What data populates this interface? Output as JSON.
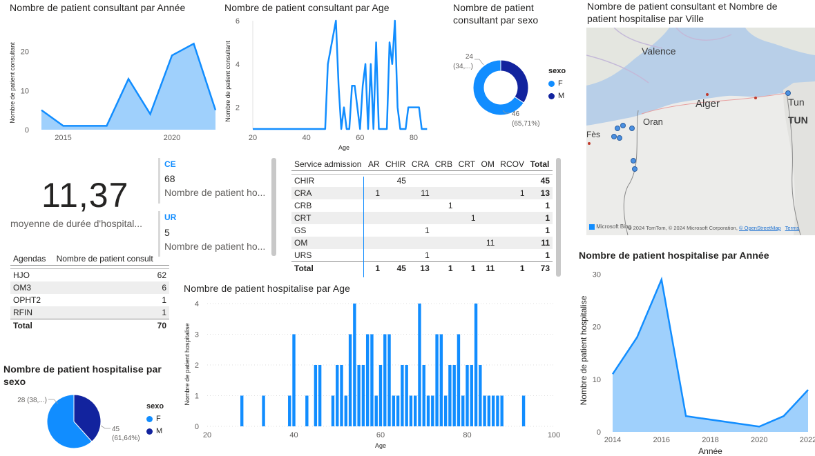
{
  "colors": {
    "primary": "#118dff",
    "dark": "#12239e",
    "area": "#9fd0fc",
    "map_water": "#b8cfe8",
    "map_land": "#ececea"
  },
  "charts": {
    "consult_annee": {
      "title": "Nombre de patient consultant par Année",
      "ylabel": "Nombre de patient consultant",
      "yticks": [
        "0",
        "10",
        "20"
      ],
      "xticks": [
        "2015",
        "2020"
      ]
    },
    "consult_age": {
      "title": "Nombre de patient consultant par Age",
      "ylabel": "Nombre de patient consultant",
      "xlabel": "Age",
      "yticks": [
        "2",
        "4",
        "6"
      ],
      "xticks": [
        "20",
        "40",
        "60",
        "80"
      ]
    },
    "consult_sexo": {
      "title": "Nombre de patient consultant par sexo",
      "legend_title": "sexo",
      "legend": [
        "F",
        "M"
      ],
      "labels": {
        "m_value": "24",
        "m_pct": "(34,...)",
        "f_value": "46",
        "f_pct": "(65,71%)"
      }
    },
    "map": {
      "title": "Nombre de patient consultant et Nombre de patient hospitalise par Ville",
      "cities": [
        "Valence",
        "Alger",
        "Oran",
        "Tun",
        "TUN",
        "Fès"
      ],
      "attribution": "© 2024 TomTom, © 2024 Microsoft Corporation,",
      "osm": "© OpenStreetMap",
      "terms": "Terms",
      "brand": "Microsoft Bing"
    },
    "kpi": {
      "value": "11,37",
      "label": "moyenne de durée d'hospital..."
    },
    "cards": [
      {
        "category": "CE",
        "value": "68",
        "label": "Nombre de patient ho..."
      },
      {
        "category": "UR",
        "value": "5",
        "label": "Nombre de patient ho..."
      }
    ],
    "agendas": {
      "headers": [
        "Agendas",
        "Nombre de patient consult"
      ],
      "rows": [
        [
          "HJO",
          "62"
        ],
        [
          "OM3",
          "6"
        ],
        [
          "OPHT2",
          "1"
        ],
        [
          "RFIN",
          "1"
        ]
      ],
      "total": [
        "Total",
        "70"
      ]
    },
    "matrix": {
      "headers": [
        "Service admission",
        "AR",
        "CHIR",
        "CRA",
        "CRB",
        "CRT",
        "OM",
        "RCOV",
        "Total"
      ],
      "rows": [
        [
          "CHIR",
          "",
          "45",
          "",
          "",
          "",
          "",
          "",
          "45"
        ],
        [
          "CRA",
          "1",
          "",
          "11",
          "",
          "",
          "",
          "1",
          "13"
        ],
        [
          "CRB",
          "",
          "",
          "",
          "1",
          "",
          "",
          "",
          "1"
        ],
        [
          "CRT",
          "",
          "",
          "",
          "",
          "1",
          "",
          "",
          "1"
        ],
        [
          "GS",
          "",
          "",
          "1",
          "",
          "",
          "",
          "",
          "1"
        ],
        [
          "OM",
          "",
          "",
          "",
          "",
          "",
          "11",
          "",
          "11"
        ],
        [
          "URS",
          "",
          "",
          "1",
          "",
          "",
          "",
          "",
          "1"
        ]
      ],
      "total": [
        "Total",
        "1",
        "45",
        "13",
        "1",
        "1",
        "11",
        "1",
        "73"
      ]
    },
    "hosp_age": {
      "title": "Nombre de patient hospitalise par Age",
      "ylabel": "Nombre de patient hospitalise",
      "xlabel": "Age",
      "yticks": [
        "0",
        "1",
        "2",
        "3",
        "4"
      ],
      "xticks": [
        "20",
        "40",
        "60",
        "80",
        "100"
      ]
    },
    "hosp_sexo": {
      "title": "Nombre de patient hospitalise par sexo",
      "legend_title": "sexo",
      "legend": [
        "F",
        "M"
      ],
      "labels": {
        "m_value": "28",
        "m_pct": "(38,...)",
        "f_value": "45",
        "f_pct": "(61,64%)"
      }
    },
    "hosp_annee": {
      "title": "Nombre de patient hospitalise par Année",
      "ylabel": "Nombre de patient hospitalise",
      "xlabel": "Année",
      "yticks": [
        "0",
        "10",
        "20",
        "30"
      ],
      "xticks": [
        "2014",
        "2016",
        "2018",
        "2020",
        "2022"
      ]
    }
  },
  "chart_data": [
    {
      "type": "area",
      "title": "Nombre de patient consultant par Année",
      "ylabel": "Nombre de patient consultant",
      "x": [
        2014,
        2015,
        2016,
        2017,
        2018,
        2019,
        2020,
        2021,
        2022
      ],
      "values": [
        5,
        1,
        1,
        1,
        13,
        4,
        19,
        22,
        5
      ],
      "ylim": [
        0,
        24
      ],
      "xlim": [
        2014,
        2022
      ]
    },
    {
      "type": "line",
      "title": "Nombre de patient consultant par Age",
      "xlabel": "Age",
      "ylabel": "Nombre de patient consultant",
      "x": [
        20,
        47,
        48,
        51,
        52,
        53,
        54,
        55,
        56,
        57,
        58,
        59,
        60,
        61,
        62,
        63,
        64,
        65,
        66,
        67,
        68,
        69,
        70,
        71,
        72,
        73,
        74,
        75,
        76,
        77,
        78,
        79,
        80,
        81,
        82,
        83,
        84,
        85
      ],
      "values": [
        1,
        1,
        4,
        6,
        3,
        1,
        2,
        1,
        1,
        3,
        3,
        2,
        1,
        3,
        4,
        1,
        4,
        1,
        5,
        1,
        1,
        1,
        1,
        5,
        4,
        6,
        2,
        1,
        1,
        1,
        2,
        2,
        2,
        2,
        2,
        1,
        1,
        1
      ],
      "ylim": [
        1,
        6
      ],
      "xlim": [
        20,
        88
      ]
    },
    {
      "type": "pie",
      "title": "Nombre de patient consultant par sexo",
      "donut": true,
      "categories": [
        "F",
        "M"
      ],
      "values": [
        46,
        24
      ]
    },
    {
      "type": "table",
      "title": "Agendas",
      "categories": [
        "HJO",
        "OM3",
        "OPHT2",
        "RFIN"
      ],
      "values": [
        62,
        6,
        1,
        1
      ],
      "total": 70
    },
    {
      "type": "table",
      "title": "Service admission",
      "columns": [
        "AR",
        "CHIR",
        "CRA",
        "CRB",
        "CRT",
        "OM",
        "RCOV"
      ],
      "rows": [
        "CHIR",
        "CRA",
        "CRB",
        "CRT",
        "GS",
        "OM",
        "URS"
      ],
      "total": 73
    },
    {
      "type": "bar",
      "title": "Nombre de patient hospitalise par Age",
      "xlabel": "Age",
      "ylabel": "Nombre de patient hospitalise",
      "x": [
        28,
        33,
        39,
        40,
        43,
        45,
        46,
        49,
        50,
        51,
        52,
        53,
        54,
        55,
        56,
        57,
        58,
        59,
        60,
        61,
        62,
        63,
        64,
        65,
        66,
        67,
        68,
        69,
        70,
        71,
        72,
        73,
        74,
        75,
        76,
        77,
        78,
        79,
        80,
        81,
        82,
        83,
        84,
        85,
        86,
        87,
        88,
        93
      ],
      "values": [
        1,
        1,
        1,
        3,
        1,
        2,
        2,
        1,
        2,
        2,
        1,
        3,
        4,
        2,
        2,
        3,
        3,
        1,
        2,
        3,
        3,
        1,
        1,
        2,
        2,
        1,
        1,
        4,
        2,
        1,
        1,
        3,
        3,
        1,
        2,
        2,
        3,
        1,
        2,
        2,
        4,
        2,
        1,
        1,
        1,
        1,
        1,
        1
      ],
      "ylim": [
        0,
        4
      ],
      "xlim": [
        20,
        100
      ]
    },
    {
      "type": "pie",
      "title": "Nombre de patient hospitalise par sexo",
      "categories": [
        "F",
        "M"
      ],
      "values": [
        45,
        28
      ]
    },
    {
      "type": "area",
      "title": "Nombre de patient hospitalise par Année",
      "xlabel": "Année",
      "ylabel": "Nombre de patient hospitalise",
      "x": [
        2014,
        2015,
        2016,
        2017,
        2020,
        2021,
        2022
      ],
      "values": [
        11,
        18,
        29,
        3,
        1,
        3,
        8
      ],
      "ylim": [
        0,
        31
      ],
      "xlim": [
        2014,
        2022
      ]
    }
  ]
}
